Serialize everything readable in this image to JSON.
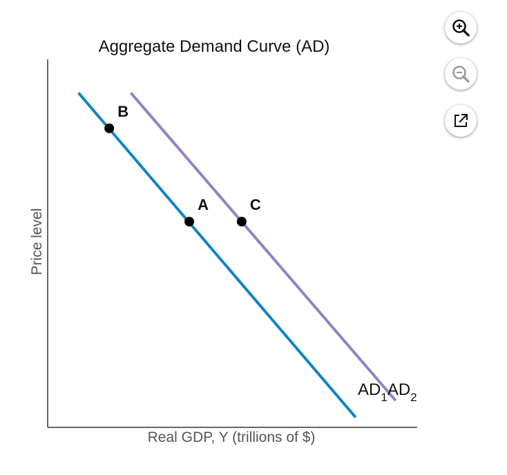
{
  "chart_data": {
    "type": "line",
    "title": "Aggregate Demand Curve (AD)",
    "xlabel": "Real GDP, Y (trillions of $)",
    "ylabel": "Price level",
    "grid": false,
    "series": [
      {
        "name": "AD1",
        "name_main": "AD",
        "name_sub": "1",
        "color": "#0e84c4",
        "x": [
          1.0,
          10.0
        ],
        "y": [
          10.0,
          0.3
        ]
      },
      {
        "name": "AD2",
        "name_main": "AD",
        "name_sub": "2",
        "color": "#8a86c6",
        "x": [
          2.7,
          11.3
        ],
        "y": [
          10.0,
          0.8
        ]
      }
    ],
    "points": [
      {
        "label": "B",
        "x": 2.0,
        "y": 8.94,
        "series": "AD1"
      },
      {
        "label": "A",
        "x": 4.6,
        "y": 6.15,
        "series": "AD1"
      },
      {
        "label": "C",
        "x": 6.3,
        "y": 6.15,
        "series": "AD2"
      }
    ],
    "xlim": [
      0,
      12
    ],
    "ylim": [
      0,
      11
    ]
  },
  "toolbar": {
    "buttons": [
      {
        "name": "zoom-in-button",
        "icon": "zoom-in-icon"
      },
      {
        "name": "zoom-out-button",
        "icon": "zoom-out-icon"
      },
      {
        "name": "open-external-button",
        "icon": "external-link-icon"
      }
    ]
  }
}
